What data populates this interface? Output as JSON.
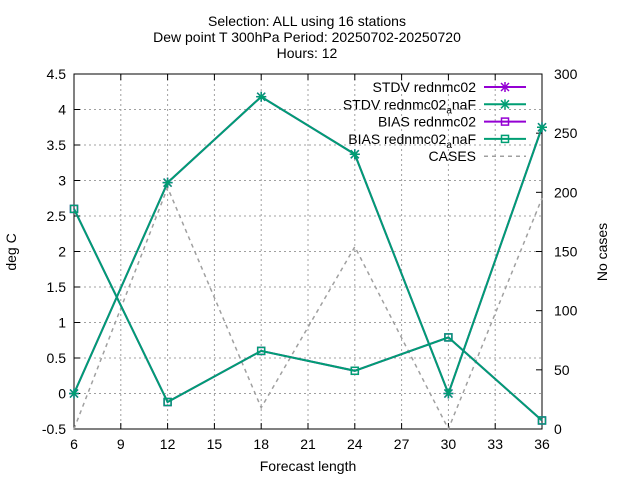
{
  "chart_data": {
    "type": "line",
    "title_lines": [
      "Selection: ALL using    16 stations",
      "Dew point T 300hPa   Period: 20250702-20250720",
      "Hours: 12"
    ],
    "xlabel": "Forecast length",
    "ylabel": "deg C",
    "y2label": "No cases",
    "xlim": [
      6,
      36
    ],
    "ylim": [
      -0.5,
      4.5
    ],
    "y2lim": [
      0,
      300
    ],
    "xticks": [
      "6",
      "9",
      "12",
      "15",
      "18",
      "21",
      "24",
      "27",
      "30",
      "33",
      "36"
    ],
    "yticks": [
      "-0.5",
      "0",
      "0.5",
      "1",
      "1.5",
      "2",
      "2.5",
      "3",
      "3.5",
      "4",
      "4.5"
    ],
    "y2ticks": [
      "0",
      "50",
      "100",
      "150",
      "200",
      "250",
      "300"
    ],
    "grid": true,
    "legend_position": "top-right",
    "x": [
      6,
      12,
      18,
      24,
      30,
      36
    ],
    "series": [
      {
        "name": "STDV rednmc02",
        "axis": "y",
        "marker": "star",
        "color": "#9400d3",
        "values": [
          0.0,
          2.97,
          4.18,
          3.37,
          0.0,
          3.75
        ]
      },
      {
        "name": "STDV rednmc02_anaF",
        "axis": "y",
        "marker": "star",
        "color": "#009e73",
        "values": [
          0.0,
          2.97,
          4.18,
          3.37,
          0.0,
          3.75
        ]
      },
      {
        "name": "BIAS rednmc02",
        "axis": "y",
        "marker": "square",
        "color": "#9400d3",
        "values": [
          2.6,
          -0.12,
          0.6,
          0.32,
          0.79,
          -0.38
        ]
      },
      {
        "name": "BIAS rednmc02_anaF",
        "axis": "y",
        "marker": "square",
        "color": "#009e73",
        "values": [
          2.6,
          -0.12,
          0.6,
          0.32,
          0.79,
          -0.38
        ]
      },
      {
        "name": "CASES",
        "axis": "y2",
        "marker": "none",
        "color": "#a0a0a0",
        "dashed": true,
        "values": [
          0,
          204,
          18,
          154,
          0,
          195
        ]
      }
    ],
    "legend": [
      {
        "text": "STDV rednmc02",
        "sub": ""
      },
      {
        "text": "STDV rednmc02",
        "sub": "a",
        "suffix": "naF"
      },
      {
        "text": "BIAS rednmc02",
        "sub": ""
      },
      {
        "text": "BIAS rednmc02",
        "sub": "a",
        "suffix": "naF"
      },
      {
        "text": "CASES",
        "sub": ""
      }
    ]
  }
}
